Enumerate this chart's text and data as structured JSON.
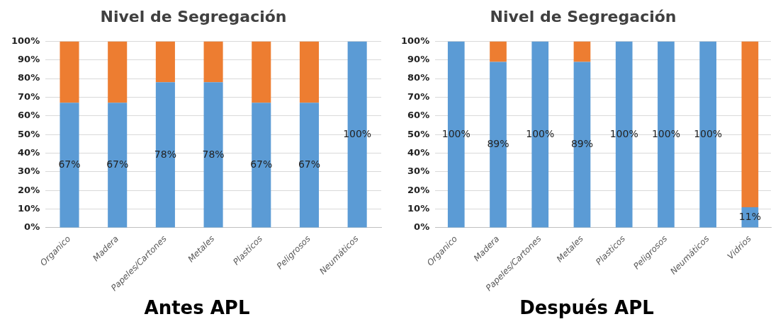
{
  "chart_data": [
    {
      "type": "bar",
      "title": "Nivel de Segregación",
      "stacked": true,
      "grid": "y",
      "legend": false,
      "categories": [
        "Organico",
        "Madera",
        "Papeles/Cartones",
        "Metales",
        "Plasticos",
        "Peligrosos",
        "Neumáticos"
      ],
      "series": [
        {
          "color": "#5b9bd5",
          "values": [
            67,
            67,
            78,
            78,
            67,
            67,
            100
          ],
          "value_labels": [
            "67%",
            "67%",
            "78%",
            "78%",
            "67%",
            "67%",
            "100%"
          ]
        },
        {
          "color": "#ed7d31",
          "values": [
            33,
            33,
            22,
            22,
            33,
            33,
            0
          ]
        }
      ],
      "ylim": [
        0,
        100
      ],
      "yticks": [
        {
          "value": 0,
          "label": "0%"
        },
        {
          "value": 10,
          "label": "10%"
        },
        {
          "value": 20,
          "label": "20%"
        },
        {
          "value": 30,
          "label": "30%"
        },
        {
          "value": 40,
          "label": "40%"
        },
        {
          "value": 50,
          "label": "50%"
        },
        {
          "value": 60,
          "label": "60%"
        },
        {
          "value": 70,
          "label": "70%"
        },
        {
          "value": 80,
          "label": "80%"
        },
        {
          "value": 90,
          "label": "90%"
        },
        {
          "value": 100,
          "label": "100%"
        }
      ],
      "annotations": [
        "Antes APL"
      ]
    },
    {
      "type": "bar",
      "title": "Nivel de Segregación",
      "stacked": true,
      "grid": "y",
      "legend": false,
      "categories": [
        "Organico",
        "Madera",
        "Papeles/Cartones",
        "Metales",
        "Plasticos",
        "Peligrosos",
        "Neumáticos",
        "Vidrios"
      ],
      "series": [
        {
          "color": "#5b9bd5",
          "values": [
            100,
            89,
            100,
            89,
            100,
            100,
            100,
            11
          ],
          "value_labels": [
            "100%",
            "89%",
            "100%",
            "89%",
            "100%",
            "100%",
            "100%",
            "11%"
          ]
        },
        {
          "color": "#ed7d31",
          "values": [
            0,
            11,
            0,
            11,
            0,
            0,
            0,
            89
          ]
        }
      ],
      "ylim": [
        0,
        100
      ],
      "yticks": [
        {
          "value": 0,
          "label": "0%"
        },
        {
          "value": 10,
          "label": "10%"
        },
        {
          "value": 20,
          "label": "20%"
        },
        {
          "value": 30,
          "label": "30%"
        },
        {
          "value": 40,
          "label": "40%"
        },
        {
          "value": 50,
          "label": "50%"
        },
        {
          "value": 60,
          "label": "60%"
        },
        {
          "value": 70,
          "label": "70%"
        },
        {
          "value": 80,
          "label": "80%"
        },
        {
          "value": 90,
          "label": "90%"
        },
        {
          "value": 100,
          "label": "100%"
        }
      ],
      "annotations": [
        "Después APL"
      ]
    }
  ]
}
